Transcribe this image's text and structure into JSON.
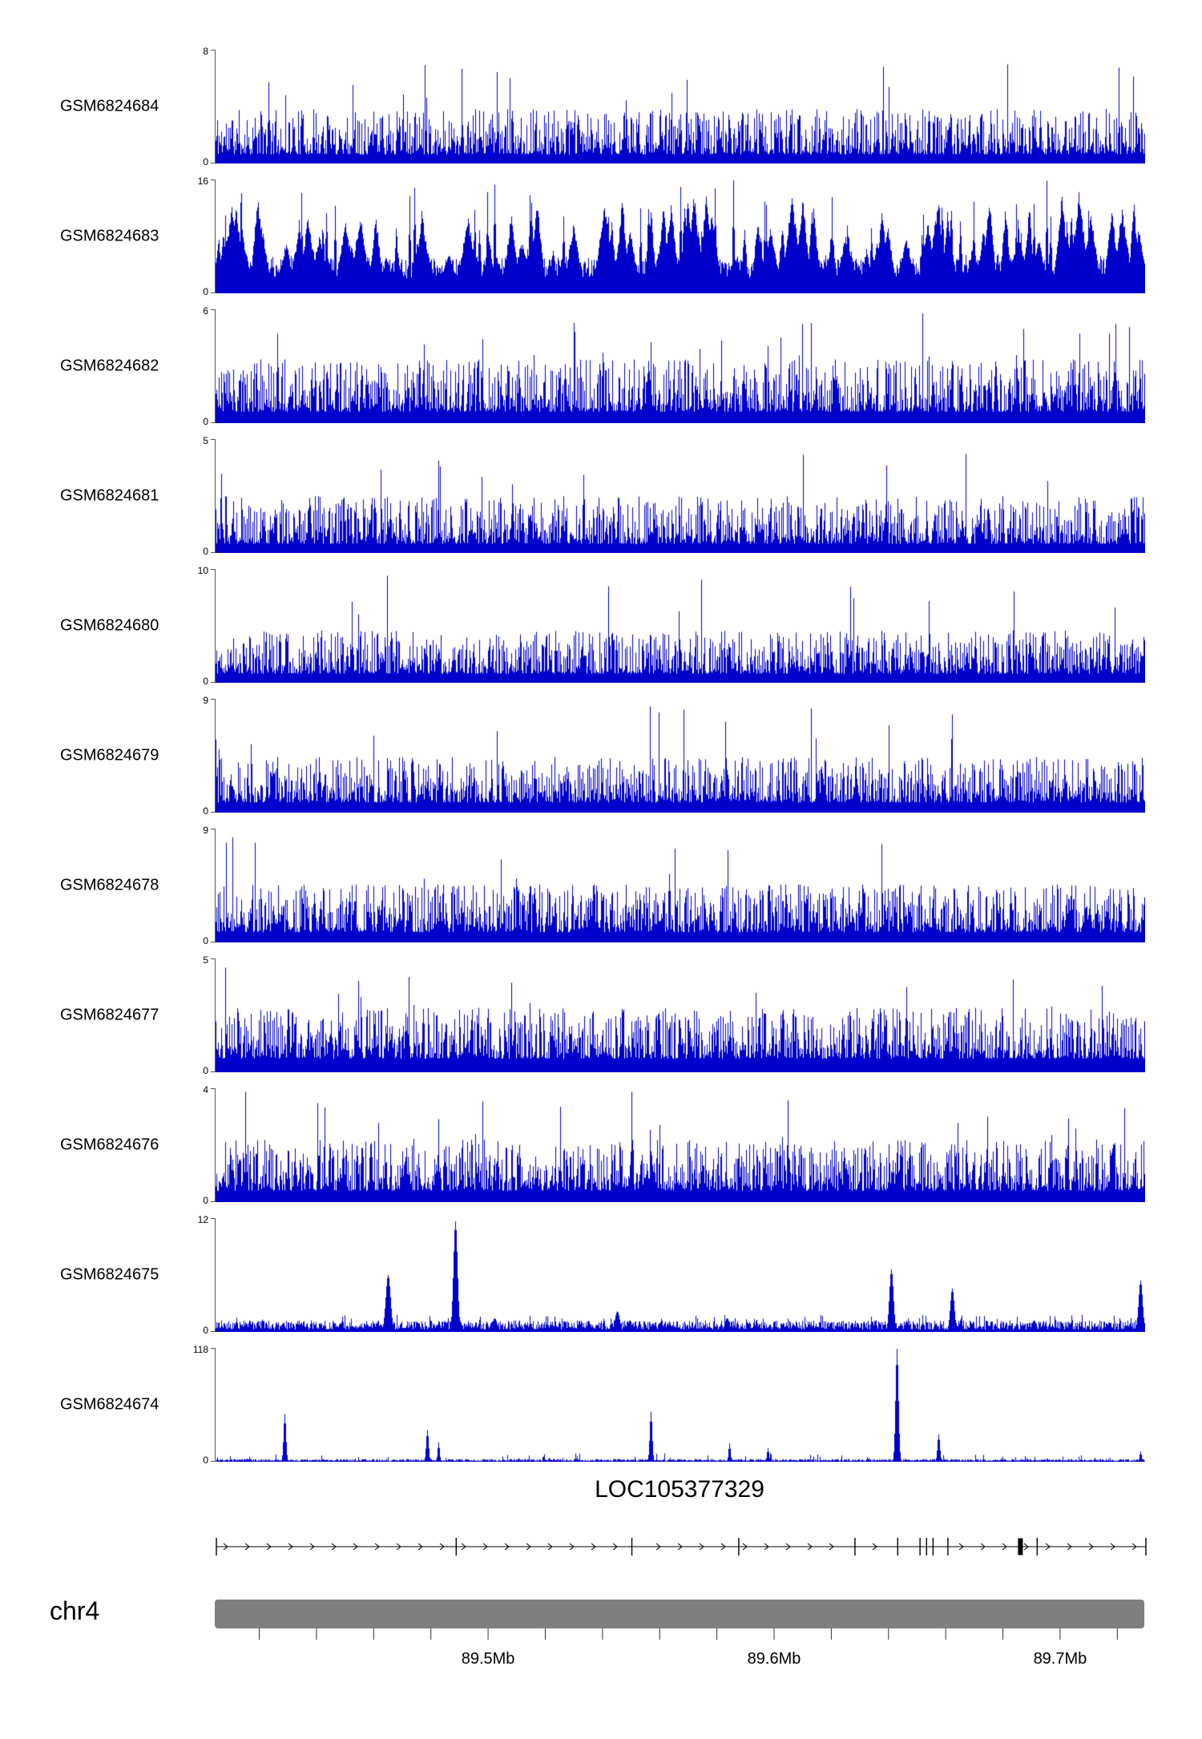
{
  "colors": {
    "signal": "#0000CC",
    "axis": "#000000",
    "chromosome_bar": "#7f7f7f",
    "text": "#000000"
  },
  "chart_data": {
    "type": "area",
    "subtype": "genome-browser-coverage-tracks",
    "title": "",
    "chromosome": {
      "label": "chr4"
    },
    "gene": {
      "name": "LOC105377329",
      "strand": "right",
      "exon_fracs": [
        0,
        0.258,
        0.447,
        0.562,
        0.687,
        0.733,
        0.757,
        0.764,
        0.771,
        0.787,
        0.883,
        1
      ],
      "thick_exon_frac": 0.865
    },
    "x_axis": {
      "unit": "Mb",
      "range_mb": [
        89.405,
        89.73
      ],
      "major_ticks": [
        {
          "mb": 89.5,
          "label": "89.5Mb"
        },
        {
          "mb": 89.6,
          "label": "89.6Mb"
        },
        {
          "mb": 89.7,
          "label": "89.7Mb"
        }
      ],
      "minor_ticks_mb": {
        "start": 89.42,
        "step": 0.02,
        "end": 89.72
      }
    },
    "tracks": [
      {
        "name": "GSM6824684",
        "ylim": [
          0,
          8
        ],
        "style": "dense",
        "seed": 11,
        "base": 0.08,
        "spread": 0.4,
        "tallProb": 0.012,
        "tallMax": 0.93
      },
      {
        "name": "GSM6824683",
        "ylim": [
          0,
          16
        ],
        "style": "triangle",
        "seed": 22,
        "peaks": 170
      },
      {
        "name": "GSM6824682",
        "ylim": [
          0,
          6
        ],
        "style": "dense",
        "seed": 33,
        "base": 0.1,
        "spread": 0.46,
        "tallProb": 0.015,
        "tallMax": 0.97
      },
      {
        "name": "GSM6824681",
        "ylim": [
          0,
          5
        ],
        "style": "dense",
        "seed": 44,
        "base": 0.08,
        "spread": 0.42,
        "tallProb": 0.012,
        "tallMax": 0.9
      },
      {
        "name": "GSM6824680",
        "ylim": [
          0,
          10
        ],
        "style": "dense",
        "seed": 55,
        "base": 0.08,
        "spread": 0.38,
        "tallProb": 0.012,
        "tallMax": 0.95
      },
      {
        "name": "GSM6824679",
        "ylim": [
          0,
          9
        ],
        "style": "dense",
        "seed": 66,
        "base": 0.09,
        "spread": 0.4,
        "tallProb": 0.012,
        "tallMax": 0.96
      },
      {
        "name": "GSM6824678",
        "ylim": [
          0,
          9
        ],
        "style": "dense",
        "seed": 77,
        "base": 0.09,
        "spread": 0.42,
        "tallProb": 0.012,
        "tallMax": 0.95
      },
      {
        "name": "GSM6824677",
        "ylim": [
          0,
          5
        ],
        "style": "dense",
        "seed": 88,
        "base": 0.12,
        "spread": 0.45,
        "tallProb": 0.012,
        "tallMax": 0.92
      },
      {
        "name": "GSM6824676",
        "ylim": [
          0,
          4
        ],
        "style": "dense",
        "seed": 99,
        "base": 0.1,
        "spread": 0.45,
        "tallProb": 0.015,
        "tallMax": 0.97
      },
      {
        "name": "GSM6824675",
        "ylim": [
          0,
          12
        ],
        "style": "sparse",
        "seed": 110,
        "baseline": 0.05,
        "spikes": [
          {
            "f": 0.185,
            "h": 0.5,
            "w": 3.0
          },
          {
            "f": 0.258,
            "h": 0.97,
            "w": 2.5
          },
          {
            "f": 0.3,
            "h": 0.12,
            "w": 3.0
          },
          {
            "f": 0.432,
            "h": 0.18,
            "w": 3.0
          },
          {
            "f": 0.55,
            "h": 0.12,
            "w": 3.0
          },
          {
            "f": 0.727,
            "h": 0.55,
            "w": 2.5
          },
          {
            "f": 0.792,
            "h": 0.38,
            "w": 2.5
          },
          {
            "f": 0.88,
            "h": 0.1,
            "w": 3.0
          },
          {
            "f": 0.995,
            "h": 0.45,
            "w": 2.5
          }
        ]
      },
      {
        "name": "GSM6824674",
        "ylim": [
          0,
          118
        ],
        "style": "sparse",
        "seed": 121,
        "baseline": 0.012,
        "spikes": [
          {
            "f": 0.074,
            "h": 0.42,
            "w": 1.5
          },
          {
            "f": 0.228,
            "h": 0.28,
            "w": 1.5
          },
          {
            "f": 0.24,
            "h": 0.17,
            "w": 1.2
          },
          {
            "f": 0.468,
            "h": 0.44,
            "w": 1.5
          },
          {
            "f": 0.553,
            "h": 0.16,
            "w": 1.2
          },
          {
            "f": 0.594,
            "h": 0.12,
            "w": 1.2
          },
          {
            "f": 0.733,
            "h": 0.99,
            "w": 1.8
          },
          {
            "f": 0.778,
            "h": 0.24,
            "w": 1.5
          },
          {
            "f": 0.995,
            "h": 0.09,
            "w": 1.2
          }
        ]
      }
    ]
  }
}
